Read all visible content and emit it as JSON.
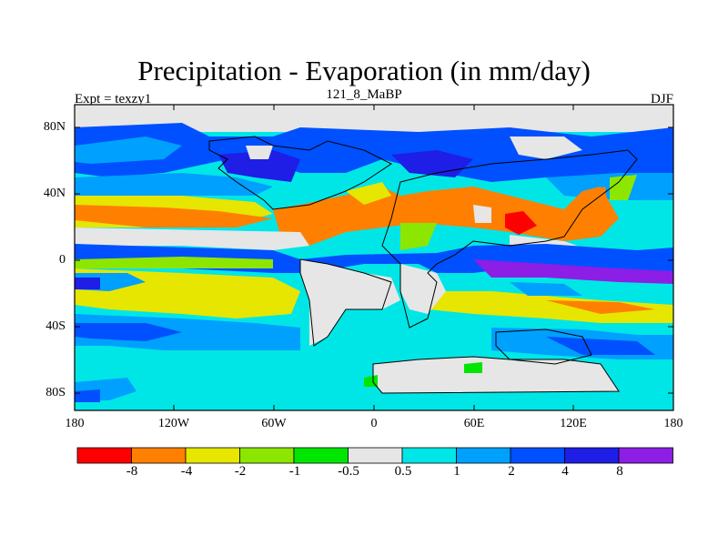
{
  "figure": {
    "title": "Precipitation - Evaporation (in mm/day)",
    "left_subtitle": "Expt = texzy1",
    "center_subtitle": "121_8_MaBP",
    "right_subtitle": "DJF"
  },
  "axes": {
    "y_ticks": [
      "80N",
      "40N",
      "0",
      "40S",
      "80S"
    ],
    "x_ticks": [
      "180",
      "120W",
      "60W",
      "0",
      "60E",
      "120E",
      "180"
    ]
  },
  "colorbar": {
    "labels": [
      "-8",
      "-4",
      "-2",
      "-1",
      "-0.5",
      "0.5",
      "1",
      "2",
      "4",
      "8"
    ],
    "colors": [
      "#ff0000",
      "#ff8000",
      "#e6e600",
      "#8ce600",
      "#00e600",
      "#e6e6e6",
      "#00e6e6",
      "#00a0ff",
      "#0050ff",
      "#1e1ee6",
      "#8c1ee6"
    ]
  }
}
